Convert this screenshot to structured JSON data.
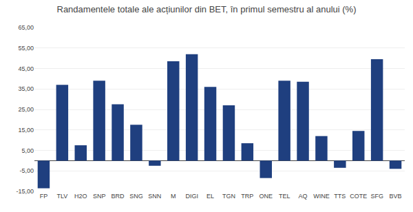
{
  "chart_data": {
    "type": "bar",
    "title": "Randamentele totale ale acțiunilor din BET, în primul semestru al anului (%)",
    "categories": [
      "FP",
      "TLV",
      "H2O",
      "SNP",
      "BRD",
      "SNG",
      "SNN",
      "M",
      "DIGI",
      "EL",
      "TGN",
      "TRP",
      "ONE",
      "TEL",
      "AQ",
      "WINE",
      "TTS",
      "COTE",
      "SFG",
      "BVB"
    ],
    "values": [
      -13.5,
      37.0,
      7.5,
      39.0,
      27.5,
      17.5,
      -2.5,
      48.5,
      52.0,
      36.0,
      27.0,
      8.5,
      -8.5,
      39.0,
      38.5,
      12.0,
      -3.5,
      14.5,
      49.5,
      -4.0
    ],
    "color": "#1F3F7F",
    "ylim": [
      -15,
      65
    ],
    "yticks": [
      {
        "value": -15,
        "label": "-15,00"
      },
      {
        "value": -5,
        "label": "-5,00"
      },
      {
        "value": 5,
        "label": "5,00"
      },
      {
        "value": 15,
        "label": "15,00"
      },
      {
        "value": 25,
        "label": "25,00"
      },
      {
        "value": 35,
        "label": "35,00"
      },
      {
        "value": 45,
        "label": "45,00"
      },
      {
        "value": 55,
        "label": "55,00"
      },
      {
        "value": 65,
        "label": "65,00"
      }
    ],
    "grid": true
  }
}
